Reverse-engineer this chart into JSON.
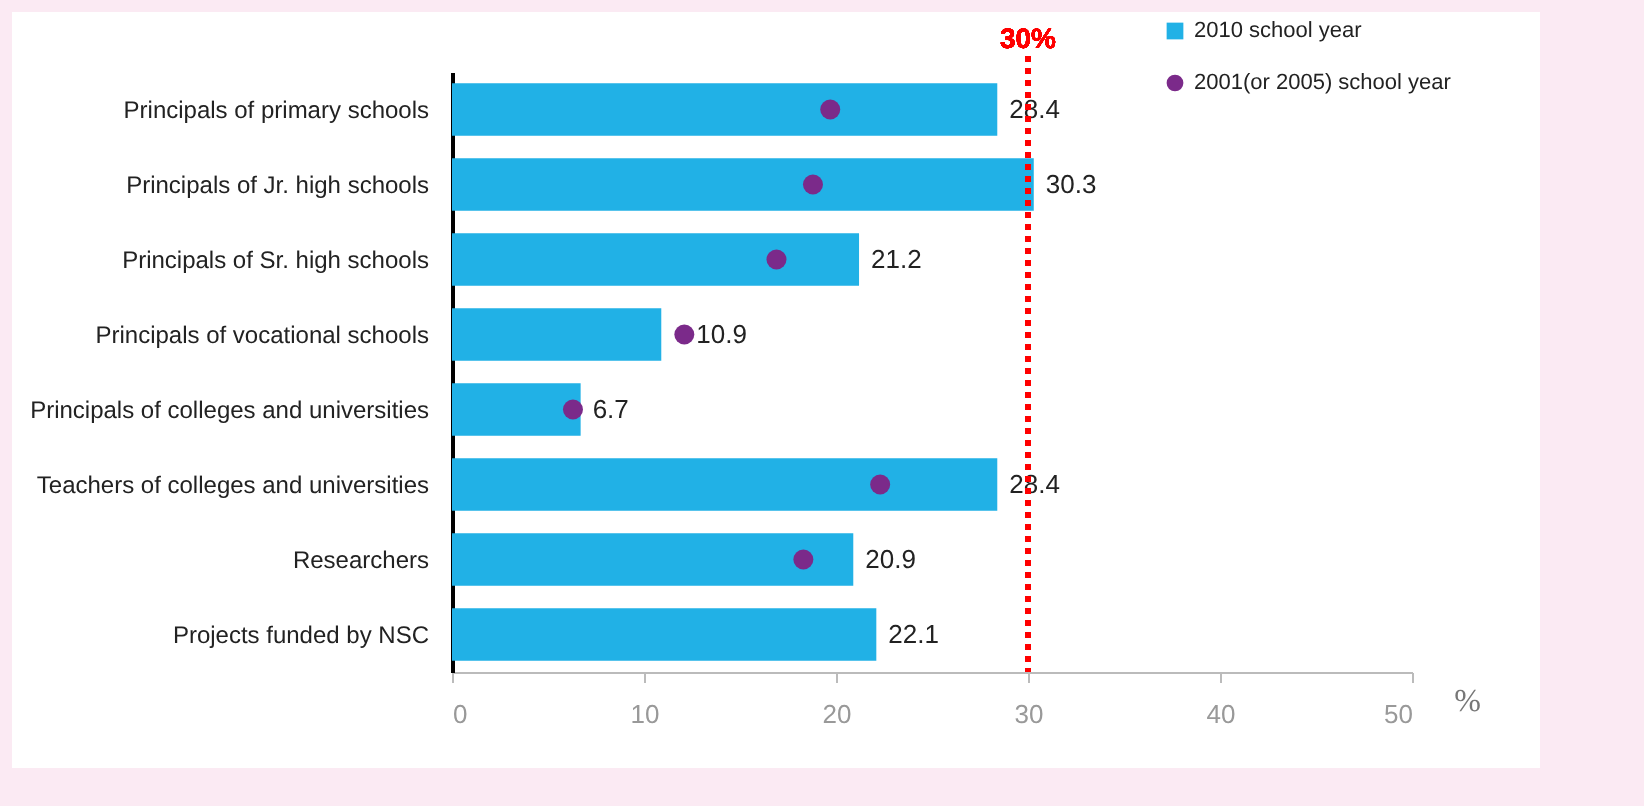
{
  "chart_data": {
    "type": "bar",
    "orientation": "horizontal",
    "xlabel": "%",
    "categories": [
      "Principals of primary schools",
      "Principals of Jr. high schools",
      "Principals of Sr. high schools",
      "Principals of vocational schools",
      "Principals of colleges and universities",
      "Teachers of colleges and universities",
      "Researchers",
      "Projects funded by NSC"
    ],
    "series": [
      {
        "name": "2010 school year",
        "color": "#21b1e6",
        "values": [
          28.4,
          30.3,
          21.2,
          10.9,
          6.7,
          28.4,
          20.9,
          22.1
        ],
        "value_labels": [
          "28.4",
          "30.3",
          "21.2",
          "10.9",
          "6.7",
          "28.4",
          "20.9",
          "22.1"
        ]
      },
      {
        "name": "2001(or 2005) school year",
        "type": "scatter",
        "color": "#7b2a8a",
        "values": [
          19.7,
          18.8,
          16.9,
          12.1,
          6.3,
          22.3,
          18.3,
          null
        ]
      }
    ],
    "marker": "circle",
    "xlim": [
      0,
      50
    ],
    "xticks": [
      0,
      10,
      20,
      30,
      40,
      50
    ],
    "ref_lines": [
      {
        "axis": "x",
        "value": 30,
        "label": "30%",
        "color": "#ff0000",
        "line_style": "dotted"
      }
    ],
    "legend": "top right"
  }
}
